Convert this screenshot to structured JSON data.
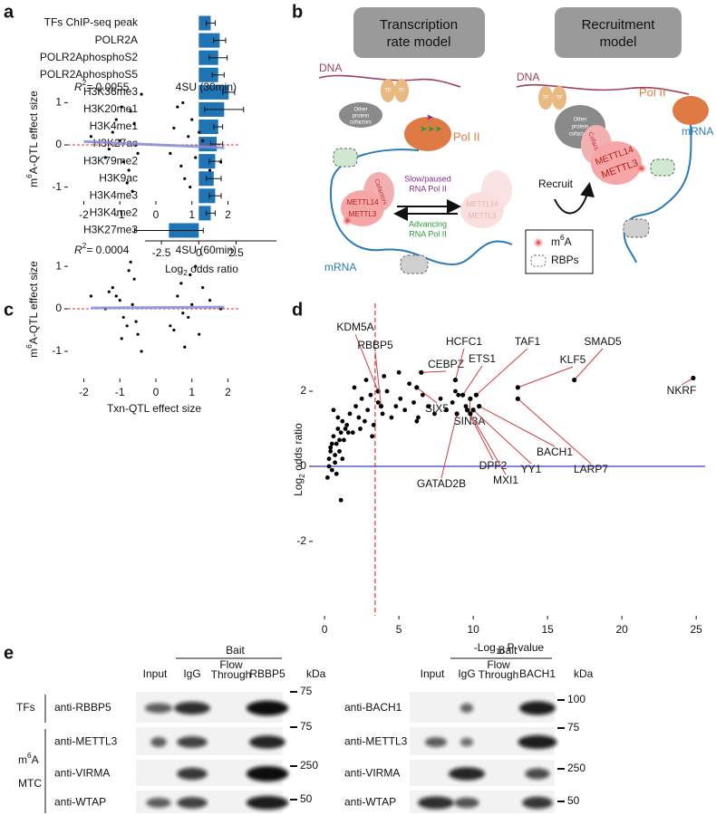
{
  "panel_labels": [
    "a",
    "b",
    "c",
    "d",
    "e"
  ],
  "chart_data": [
    {
      "type": "bar",
      "orientation": "horizontal",
      "categories": [
        "TFs ChIP-seq peak",
        "POLR2A",
        "POLR2AphosphoS2",
        "POLR2AphosphoS5",
        "H3K36me3",
        "H3K20me1",
        "H3K4me1",
        "H3K27ac",
        "H3K79me2",
        "H3K9ac",
        "H3K4me3",
        "H3K4me2",
        "H3K27me3"
      ],
      "values": [
        0.8,
        1.4,
        1.3,
        1.3,
        2.0,
        1.7,
        1.3,
        1.2,
        1.1,
        1.0,
        1.1,
        0.8,
        -2.0
      ],
      "errors": [
        0.3,
        0.4,
        0.6,
        0.4,
        0.4,
        1.3,
        0.3,
        0.4,
        0.4,
        0.5,
        0.4,
        0.3,
        2.3
      ],
      "color": "#1f74b4",
      "xlabel": [
        "Log",
        "2",
        " odds ratio"
      ],
      "xlim": [
        -3.6,
        5.2
      ],
      "xticks": [
        -2.5,
        0,
        2.5
      ]
    },
    {
      "type": "scatter",
      "x": [
        -1.2,
        -0.9,
        -0.7,
        -0.5,
        -1.0,
        -0.8,
        -0.6,
        -1.4,
        -0.4,
        -1.1,
        -0.75,
        -0.55,
        -0.95,
        -1.3,
        -0.65,
        0.5,
        0.7,
        0.9,
        1.1,
        0.6,
        0.8,
        1.0,
        1.3,
        0.4,
        1.5,
        0.75,
        0.95,
        1.2,
        -1.8,
        1.8
      ],
      "y": [
        0.3,
        -0.4,
        0.8,
        -0.2,
        0.1,
        -0.9,
        0.5,
        -0.3,
        1.2,
        0.6,
        -0.6,
        0.0,
        0.9,
        -0.1,
        -1.1,
        0.4,
        -0.5,
        0.2,
        -0.3,
        0.9,
        -0.8,
        0.6,
        0.1,
        -0.2,
        -0.6,
        1.0,
        -1.0,
        0.3,
        0.2,
        -0.4
      ],
      "color": "#000000",
      "fit": {
        "x": [
          -2,
          1.9
        ],
        "y": [
          0.08,
          -0.07
        ]
      },
      "fit_color": "#7f8fd8",
      "reference_line": 0,
      "reference_color": "#e03030",
      "annotation": [
        "R",
        "2",
        "= 0.0055"
      ],
      "condition": "4SU (30min)",
      "ylabel": [
        "m",
        "6",
        "A-QTL effect size"
      ],
      "xlim": [
        -2.44,
        2.34
      ],
      "ylim": [
        -1.33,
        1.61
      ],
      "xticks": [
        -2,
        -1,
        0,
        1,
        2
      ],
      "yticks": [
        -1,
        0,
        1
      ]
    },
    {
      "type": "scatter",
      "x": [
        -1.2,
        -0.9,
        -0.7,
        -0.5,
        -1.0,
        -0.8,
        -0.6,
        -1.4,
        -0.4,
        -1.1,
        -0.75,
        -0.55,
        -0.95,
        -1.3,
        -0.65,
        0.5,
        0.7,
        0.9,
        1.1,
        0.6,
        0.8,
        1.0,
        1.3,
        0.4,
        1.5,
        0.75,
        0.95,
        1.2,
        -1.8,
        1.8
      ],
      "y": [
        0.5,
        -0.2,
        1.1,
        -0.6,
        0.2,
        -0.4,
        0.7,
        0.0,
        -1.0,
        0.3,
        0.9,
        -0.3,
        -0.7,
        0.4,
        0.1,
        -0.5,
        0.6,
        -0.2,
        1.0,
        0.3,
        -0.9,
        0.1,
        0.5,
        -0.4,
        0.2,
        -0.1,
        0.8,
        -0.6,
        0.3,
        0.0
      ],
      "color": "#000000",
      "fit": {
        "x": [
          -1.8,
          1.9
        ],
        "y": [
          0.02,
          0.04
        ]
      },
      "fit_color": "#7f8fd8",
      "reference_line": 0,
      "reference_color": "#e03030",
      "annotation": [
        "R",
        "2",
        "= 0.0004"
      ],
      "condition": "4SU (60min)",
      "ylabel": [
        "m",
        "6",
        "A-QTL effect size"
      ],
      "xlabel": "Txn-QTL effect size",
      "xlim": [
        -2.44,
        2.34
      ],
      "ylim": [
        -1.64,
        1.62
      ],
      "xticks": [
        -2,
        -1,
        0,
        1,
        2
      ],
      "yticks": [
        -1,
        0,
        1
      ]
    },
    {
      "type": "scatter",
      "x": [
        0.2,
        0.3,
        0.4,
        0.5,
        0.6,
        0.7,
        0.8,
        0.9,
        1.0,
        1.1,
        1.2,
        1.3,
        1.5,
        1.7,
        1.9,
        2.1,
        2.3,
        2.5,
        2.7,
        2.9,
        3.1,
        3.3,
        3.6,
        3.9,
        4.2,
        4.5,
        4.8,
        5.1,
        5.4,
        5.7,
        6.0,
        6.3,
        6.6,
        7.0,
        7.4,
        7.8,
        8.2,
        8.6,
        9.0,
        9.5,
        0.3,
        0.5,
        0.7,
        0.9,
        1.2,
        1.6,
        2.0,
        2.4,
        2.8,
        3.2,
        0.4,
        0.6,
        0.8,
        1.0,
        1.4,
        1.1,
        4.0,
        5.0,
        6.2,
        8.8
      ],
      "y": [
        -0.3,
        0.2,
        0.5,
        -0.1,
        0.8,
        0.3,
        0.6,
        1.0,
        0.4,
        0.9,
        1.2,
        0.7,
        1.1,
        1.4,
        0.9,
        1.6,
        1.3,
        1.8,
        1.2,
        1.5,
        1.9,
        1.1,
        1.7,
        1.4,
        2.0,
        1.3,
        1.6,
        1.8,
        1.5,
        2.2,
        1.7,
        1.3,
        1.9,
        1.6,
        1.4,
        1.8,
        1.5,
        1.7,
        1.9,
        1.6,
        0.0,
        0.6,
        0.1,
        1.3,
        0.2,
        0.9,
        2.1,
        1.0,
        2.3,
        0.8,
        0.4,
        1.5,
        -0.2,
        0.7,
        1.0,
        -0.9,
        2.4,
        2.5,
        1.2,
        2.0
      ],
      "color": "#000000",
      "label_color": "#d04040",
      "labels": [
        {
          "text": "KDM5A",
          "x": 3.6,
          "y": 2.0
        },
        {
          "text": "RBBP5",
          "x": 3.8,
          "y": 1.6
        },
        {
          "text": "CEBPZ",
          "x": 6.5,
          "y": 2.5
        },
        {
          "text": "SIX5",
          "x": 6.2,
          "y": 2.1
        },
        {
          "text": "HCFC1",
          "x": 8.8,
          "y": 2.3
        },
        {
          "text": "ETS1",
          "x": 9.3,
          "y": 1.9
        },
        {
          "text": "TAF1",
          "x": 10.2,
          "y": 1.9
        },
        {
          "text": "SIN3A",
          "x": 9.8,
          "y": 1.8
        },
        {
          "text": "KLF5",
          "x": 13.0,
          "y": 2.1
        },
        {
          "text": "SMAD5",
          "x": 16.8,
          "y": 2.3
        },
        {
          "text": "NKRF",
          "x": 24.8,
          "y": 2.35
        },
        {
          "text": "BACH1",
          "x": 10.4,
          "y": 1.6
        },
        {
          "text": "LARP7",
          "x": 13.0,
          "y": 1.8
        },
        {
          "text": "DPF2",
          "x": 9.6,
          "y": 1.5
        },
        {
          "text": "YY1",
          "x": 10.0,
          "y": 1.5
        },
        {
          "text": "MXI1",
          "x": 9.8,
          "y": 1.4
        },
        {
          "text": "GATAD2B",
          "x": 8.9,
          "y": 1.4
        }
      ],
      "vline": 3.4,
      "vline_color": "#e03030",
      "hline": 0,
      "hline_color": "#3a3ac8",
      "xlabel": [
        "-Log",
        "10",
        " P-value"
      ],
      "ylabel": [
        "Log",
        "2",
        " odds ratio"
      ],
      "xlim": [
        -0.8,
        25.6
      ],
      "ylim": [
        -3.98,
        4.34
      ],
      "xticks": [
        0,
        5,
        10,
        15,
        20,
        25
      ],
      "yticks": [
        -2,
        0,
        2
      ]
    }
  ],
  "diagram": {
    "left_title": [
      "Transcription",
      "rate model"
    ],
    "right_title": [
      "Recruitment",
      "model"
    ],
    "dna": "DNA",
    "tf": "TF",
    "cofactors": [
      "Other",
      "protein",
      "cofactors"
    ],
    "pol2": "Pol II",
    "slow": [
      "Slow/paused",
      "RNA Pol II"
    ],
    "advancing": [
      "Advancing",
      "RNA Pol II"
    ],
    "mettl14": "METTL14",
    "mettl3": "METTL3",
    "cofactor": "Cofactors",
    "mrna": "mRNA",
    "recruit": "Recruit",
    "m6a": [
      "m",
      "6",
      "A"
    ],
    "rbps": "RBPs"
  },
  "blots": {
    "bait": "Bait",
    "kda": "kDa",
    "flow_through": [
      "Flow",
      "Through"
    ],
    "groups": {
      "tfs": "TFs",
      "mtc": [
        "m",
        "6",
        "A"
      ],
      "mtc_line2": "MTC"
    },
    "left": {
      "input": "Input",
      "igg": "IgG",
      "bait_lane": "RBBP5",
      "rows": [
        {
          "antibody": "anti-RBBP5",
          "marker": "75"
        },
        {
          "antibody": "anti-METTL3",
          "marker": "75"
        },
        {
          "antibody": "anti-VIRMA",
          "marker": "250"
        },
        {
          "antibody": "anti-WTAP",
          "marker": "50"
        }
      ]
    },
    "right": {
      "input": "Input",
      "igg": "IgG",
      "bait_lane": "BACH1",
      "rows": [
        {
          "antibody": "anti-BACH1",
          "marker": "100"
        },
        {
          "antibody": "anti-METTL3",
          "marker": "75"
        },
        {
          "antibody": "anti-VIRMA",
          "marker": "250"
        },
        {
          "antibody": "anti-WTAP",
          "marker": "50"
        }
      ]
    }
  }
}
